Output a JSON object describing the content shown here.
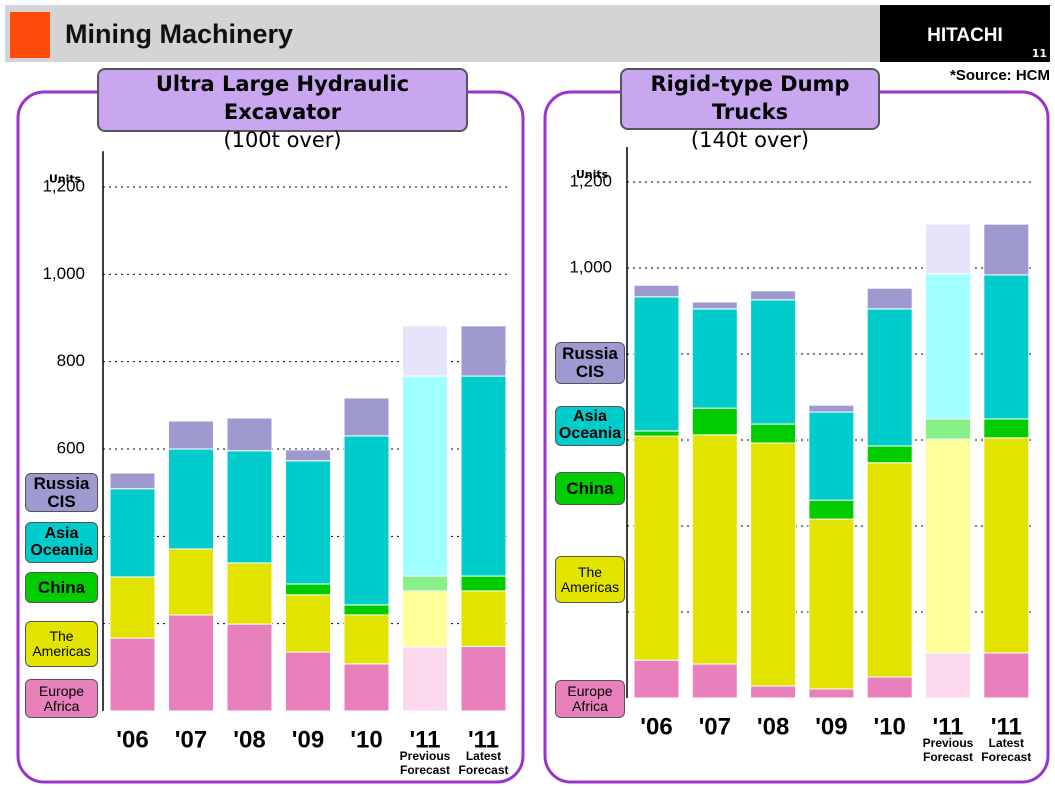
{
  "header": {
    "title": "Mining Machinery",
    "brand": "HITACHI",
    "page": "11",
    "source": "*Source: HCM"
  },
  "chart_data": [
    {
      "type": "stacked_bar",
      "title": "Ultra Large Hydraulic Excavator",
      "subtitle": "(100t over)",
      "y_label": "Units",
      "categories": [
        "'06",
        "'07",
        "'08",
        "'09",
        "'10",
        "'11",
        "'11"
      ],
      "category_sublabels": [
        null,
        null,
        null,
        null,
        null,
        "Previous Forecast",
        "Latest Forecast"
      ],
      "ylim": [
        0,
        1300
      ],
      "yticks": [
        {
          "value": 200
        },
        {
          "value": 400
        },
        {
          "value": 600,
          "label": "600"
        },
        {
          "value": 800,
          "label": "800"
        },
        {
          "value": 1000,
          "label": "1,000"
        },
        {
          "value": 1200,
          "label": "1,200"
        }
      ],
      "grid": true,
      "series": [
        {
          "name": "Europe Africa",
          "color": "#e880bb",
          "light_color": "#fcd8ec",
          "values": [
            167,
            220,
            199,
            135,
            108,
            147,
            148
          ]
        },
        {
          "name": "The Americas",
          "color": "#e3e300",
          "light_color": "#ffff99",
          "values": [
            140,
            151,
            140,
            131,
            112,
            128,
            127
          ]
        },
        {
          "name": "China",
          "color": "#00cc00",
          "light_color": "#88f088",
          "values": [
            0,
            0,
            0,
            25,
            23,
            34,
            34
          ]
        },
        {
          "name": "Asia Oceania",
          "color": "#00cccc",
          "light_color": "#a0ffff",
          "values": [
            202,
            229,
            257,
            282,
            387,
            458,
            458
          ]
        },
        {
          "name": "Russia CIS",
          "color": "#9e9ad0",
          "light_color": "#e6e4fa",
          "values": [
            36,
            64,
            75,
            25,
            87,
            115,
            115
          ]
        }
      ]
    },
    {
      "type": "stacked_bar",
      "title": "Rigid-type Dump Trucks",
      "subtitle": "(140t over)",
      "y_label": "Units",
      "categories": [
        "'06",
        "'07",
        "'08",
        "'09",
        "'10",
        "'11",
        "'11"
      ],
      "category_sublabels": [
        null,
        null,
        null,
        null,
        null,
        "Previous Forecast",
        "Latest Forecast"
      ],
      "ylim": [
        0,
        1300
      ],
      "yticks": [
        {
          "value": 200
        },
        {
          "value": 400
        },
        {
          "value": 600
        },
        {
          "value": 800
        },
        {
          "value": 1000,
          "label": "1,000"
        },
        {
          "value": 1200,
          "label": "1,200"
        }
      ],
      "grid": true,
      "series": [
        {
          "name": "Europe Africa",
          "color": "#e880bb",
          "light_color": "#fcd8ec",
          "values": [
            88,
            79,
            28,
            21,
            49,
            105,
            105
          ]
        },
        {
          "name": "The Americas",
          "color": "#e3e300",
          "light_color": "#ffff99",
          "values": [
            521,
            533,
            565,
            395,
            498,
            497,
            500
          ]
        },
        {
          "name": "China",
          "color": "#00cc00",
          "light_color": "#88f088",
          "values": [
            12,
            62,
            44,
            44,
            39,
            47,
            44
          ]
        },
        {
          "name": "Asia Oceania",
          "color": "#00cccc",
          "light_color": "#a0ffff",
          "values": [
            312,
            231,
            289,
            205,
            319,
            337,
            335
          ]
        },
        {
          "name": "Russia CIS",
          "color": "#9e9ad0",
          "light_color": "#e6e4fa",
          "values": [
            27,
            16,
            21,
            16,
            48,
            116,
            118
          ]
        }
      ]
    }
  ]
}
